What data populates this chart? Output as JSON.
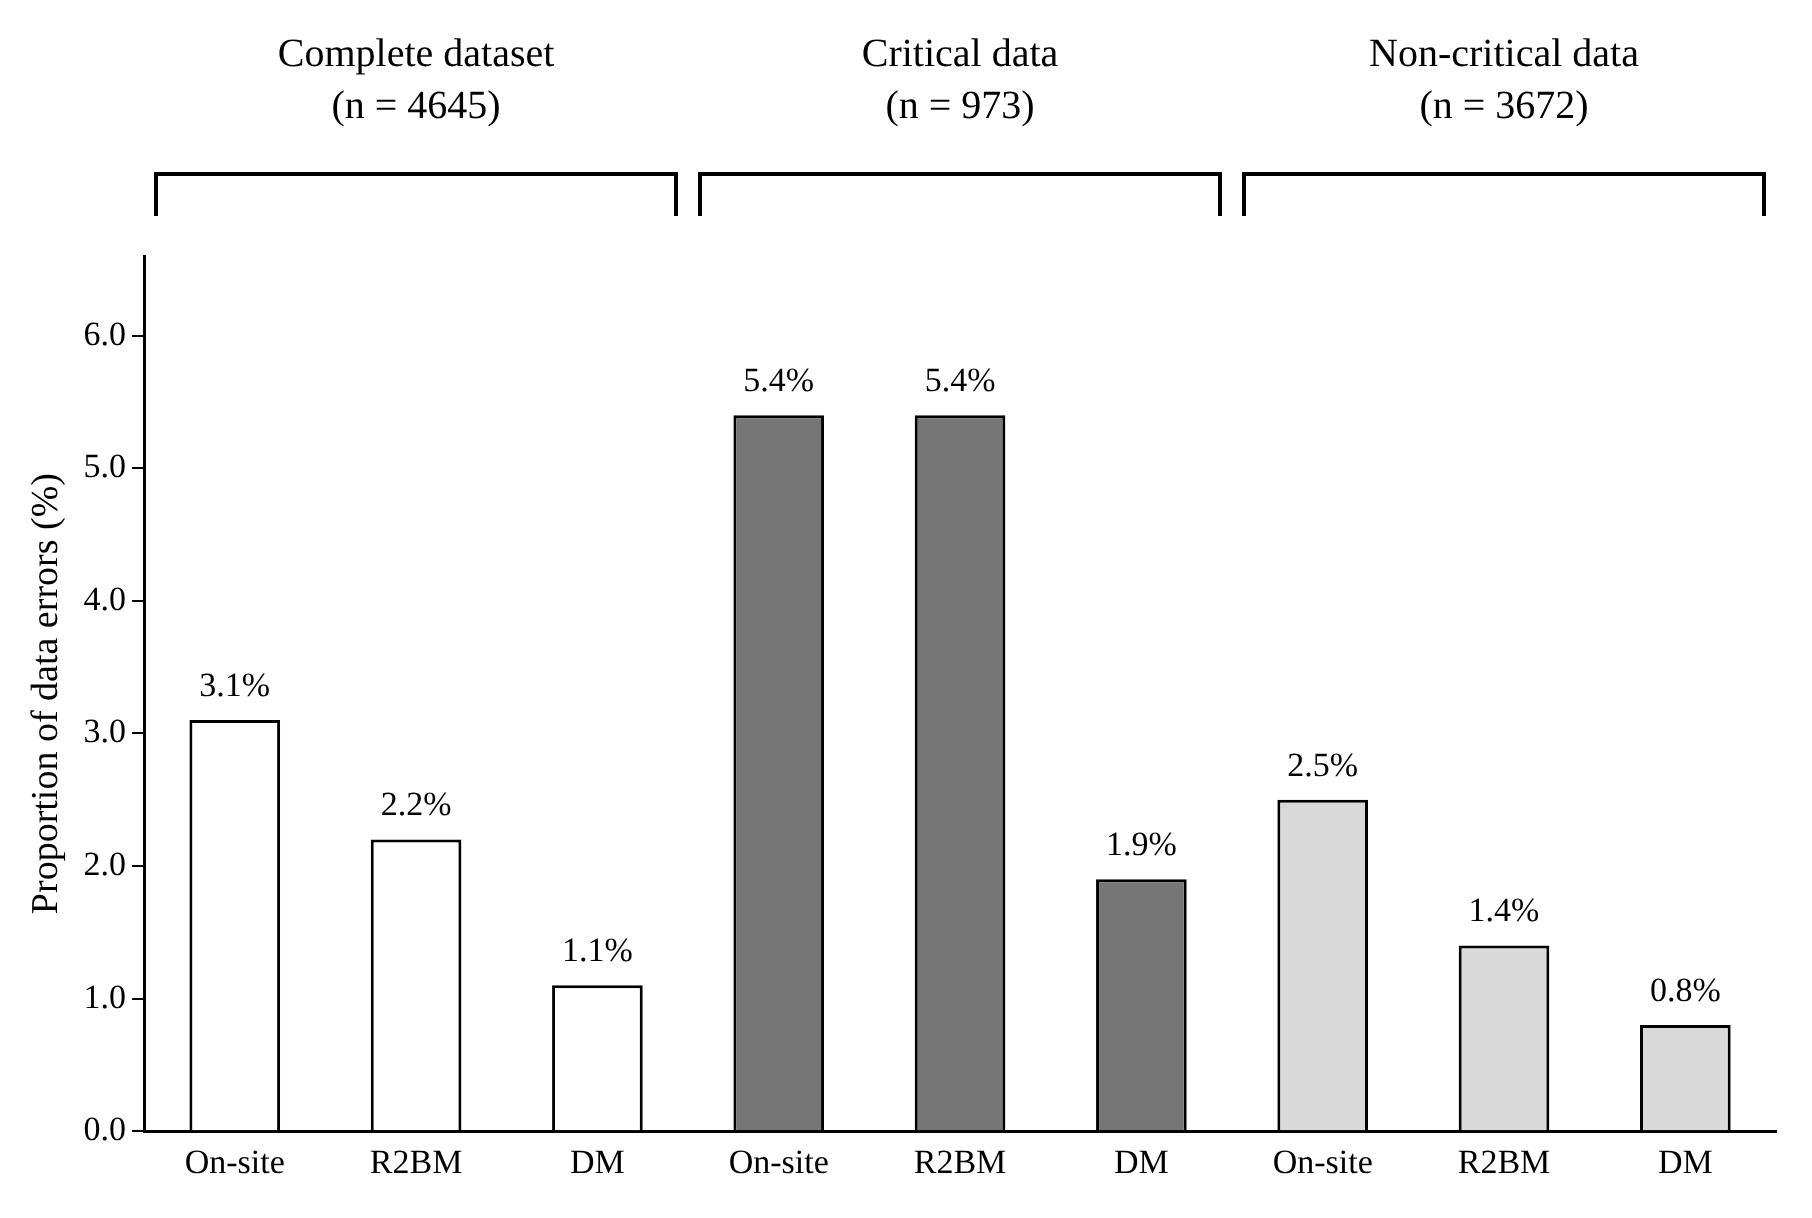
{
  "chart_data": {
    "type": "bar",
    "ylabel": "Proportion of data errors (%)",
    "categories": [
      "On-site",
      "R2BM",
      "DM",
      "On-site",
      "R2BM",
      "DM",
      "On-site",
      "R2BM",
      "DM"
    ],
    "values": [
      3.1,
      2.2,
      1.1,
      5.4,
      5.4,
      1.9,
      2.5,
      1.4,
      0.8
    ],
    "colors": [
      "#ffffff",
      "#ffffff",
      "#ffffff",
      "#767676",
      "#767676",
      "#767676",
      "#d9d9d9",
      "#d9d9d9",
      "#d9d9d9"
    ],
    "value_labels": [
      "3.1%",
      "2.2%",
      "1.1%",
      "5.4%",
      "5.4%",
      "1.9%",
      "2.5%",
      "1.4%",
      "0.8%"
    ],
    "ylim": [
      0,
      6.6
    ],
    "yticks": [
      {
        "value": 0,
        "label": "0.0"
      },
      {
        "value": 1,
        "label": "1.0"
      },
      {
        "value": 2,
        "label": "2.0"
      },
      {
        "value": 3,
        "label": "3.0"
      },
      {
        "value": 4,
        "label": "4.0"
      },
      {
        "value": 5,
        "label": "5.0"
      },
      {
        "value": 6,
        "label": "6.0"
      }
    ],
    "annotations": [
      "Complete dataset\n(n = 4645)",
      "Critical data\n(n = 973)",
      "Non-critical data\n(n = 3672)"
    ],
    "grid": false,
    "legend": false
  }
}
